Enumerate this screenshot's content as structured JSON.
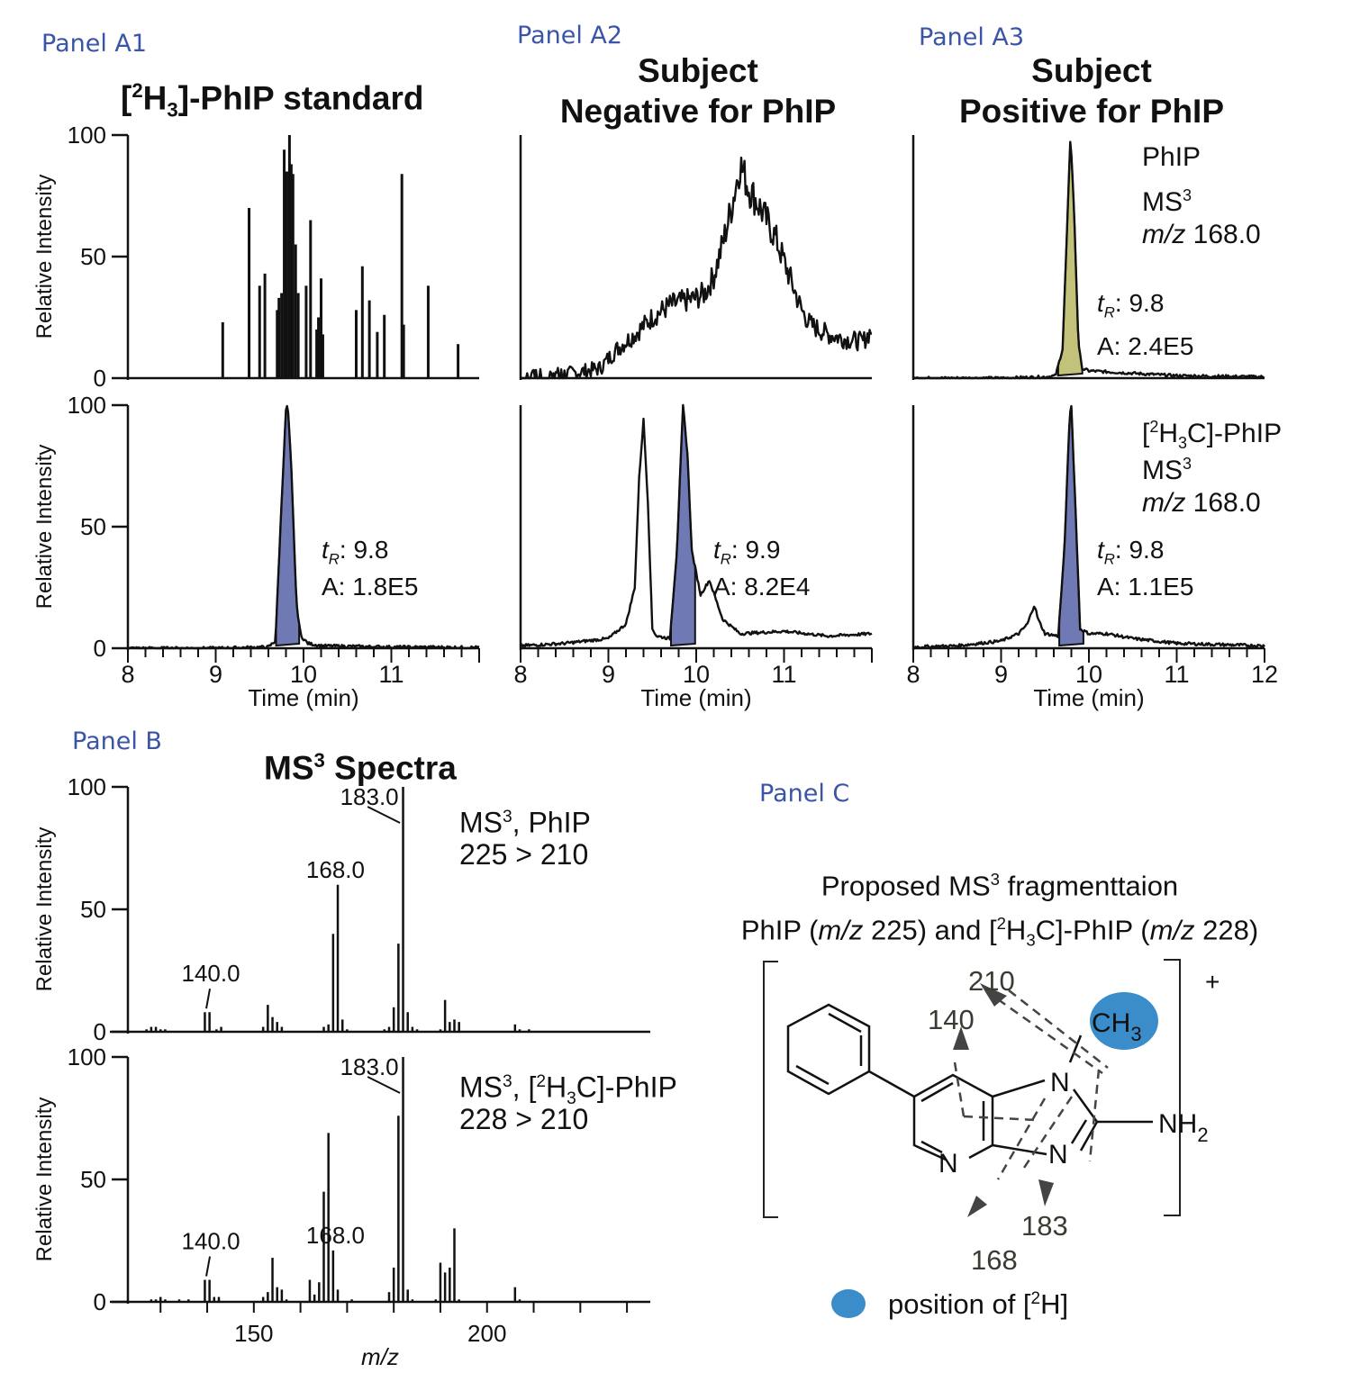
{
  "panels": {
    "a1": {
      "label": "Panel A1",
      "title": "[²H₃]-PhIP standard"
    },
    "a2": {
      "label": "Panel A2",
      "title_line1": "Subject",
      "title_line2": "Negative for PhIP"
    },
    "a3": {
      "label": "Panel A3",
      "title_line1": "Subject",
      "title_line2": "Positive for PhIP"
    },
    "b": {
      "label": "Panel B",
      "title": "MS³ Spectra"
    },
    "c": {
      "label": "Panel C"
    }
  },
  "colors": {
    "panel_label": "#3a55a8",
    "blue_fill": "#6f79b4",
    "olive_fill": "#c3c27a",
    "deuterium_dot": "#3a8dc9",
    "fragment_text": "#3b3b32"
  },
  "chart_data": [
    {
      "id": "a1_top",
      "type": "bar",
      "title": "[²H₃]-PhIP standard",
      "xlabel": "",
      "ylabel": "Relative Intensity",
      "xlim": [
        8,
        12
      ],
      "ylim": [
        0,
        100
      ],
      "yticks": [
        0,
        50,
        100
      ],
      "x": [
        9.08,
        9.38,
        9.5,
        9.56,
        9.7,
        9.72,
        9.75,
        9.78,
        9.81,
        9.84,
        9.86,
        9.88,
        9.91,
        9.94,
        10.03,
        10.08,
        10.15,
        10.17,
        10.2,
        10.22,
        10.6,
        10.67,
        10.75,
        10.84,
        10.92,
        11.12,
        11.14,
        11.42,
        11.76
      ],
      "values": [
        23,
        70,
        38,
        43,
        28,
        33,
        35,
        94,
        85,
        100,
        88,
        84,
        55,
        35,
        38,
        65,
        20,
        25,
        41,
        18,
        28,
        46,
        32,
        19,
        26,
        84,
        22,
        38,
        14
      ]
    },
    {
      "id": "a2_top",
      "type": "line",
      "xlabel": "",
      "ylabel": "",
      "xlim": [
        8,
        12
      ],
      "ylim": [
        0,
        100
      ],
      "x": [
        8.0,
        8.3,
        8.6,
        8.9,
        9.1,
        9.3,
        9.5,
        9.7,
        9.9,
        10.0,
        10.1,
        10.2,
        10.3,
        10.4,
        10.5,
        10.6,
        10.7,
        10.8,
        10.9,
        11.0,
        11.1,
        11.2,
        11.3,
        11.5,
        11.7,
        11.9,
        12.0
      ],
      "values": [
        0,
        1,
        2,
        4,
        12,
        18,
        25,
        30,
        32,
        33,
        35,
        42,
        55,
        70,
        88,
        78,
        72,
        65,
        58,
        48,
        38,
        28,
        22,
        18,
        16,
        15,
        20
      ],
      "noise": true
    },
    {
      "id": "a3_top",
      "type": "area",
      "ylabel": "",
      "xlim": [
        8,
        12
      ],
      "ylim": [
        0,
        100
      ],
      "x": [
        8.0,
        9.0,
        9.5,
        9.62,
        9.7,
        9.75,
        9.79,
        9.83,
        9.88,
        9.92,
        10.0,
        10.5,
        11.0,
        12.0
      ],
      "values": [
        0,
        0,
        0.5,
        1,
        12,
        60,
        100,
        70,
        15,
        4,
        3,
        2,
        1,
        0.5
      ],
      "annotation": {
        "compound": "PhIP",
        "mode": "MS³",
        "mz_label": "m/z",
        "mz_value": "168.0",
        "tr_label": "t",
        "tr_sub": "R",
        "tr_value": ": 9.8",
        "area": "A: 2.4E5"
      }
    },
    {
      "id": "a1_bottom",
      "type": "area",
      "xlabel": "Time (min)",
      "ylabel": "Relative Intensity",
      "xlim": [
        8,
        12
      ],
      "xticks": [
        8,
        9,
        10,
        11
      ],
      "ylim": [
        0,
        100
      ],
      "yticks": [
        0,
        50,
        100
      ],
      "x": [
        8.0,
        9.0,
        9.6,
        9.68,
        9.75,
        9.8,
        9.82,
        9.86,
        9.92,
        9.97,
        10.05,
        10.2,
        11.0,
        12.0
      ],
      "values": [
        0,
        0,
        0.5,
        3,
        60,
        98,
        100,
        75,
        18,
        5,
        2,
        1,
        0.5,
        0.3
      ],
      "annotation": {
        "tr_label": "t",
        "tr_sub": "R",
        "tr_value": ": 9.8",
        "area": "A: 1.8E5"
      }
    },
    {
      "id": "a2_bottom",
      "type": "area",
      "xlabel": "Time (min)",
      "ylabel": "",
      "xlim": [
        8,
        12
      ],
      "xticks": [
        8,
        9,
        10,
        11
      ],
      "ylim": [
        0,
        100
      ],
      "x": [
        8.0,
        8.5,
        9.0,
        9.2,
        9.3,
        9.35,
        9.4,
        9.45,
        9.5,
        9.55,
        9.7,
        9.78,
        9.85,
        9.9,
        9.95,
        10.05,
        10.15,
        10.3,
        10.5,
        11.0,
        11.5,
        12.0
      ],
      "values": [
        1,
        2,
        4,
        10,
        25,
        70,
        94,
        60,
        8,
        5,
        4,
        40,
        100,
        80,
        40,
        22,
        28,
        12,
        6,
        7,
        5,
        6
      ],
      "annotation": {
        "tr_label": "t",
        "tr_sub": "R",
        "tr_value": ": 9.9",
        "area": "A: 8.2E4"
      }
    },
    {
      "id": "a3_bottom",
      "type": "area",
      "xlabel": "Time (min)",
      "ylabel": "",
      "xlim": [
        8,
        12
      ],
      "xticks": [
        8,
        9,
        10,
        11,
        12
      ],
      "ylim": [
        0,
        100
      ],
      "x": [
        8.0,
        8.5,
        9.0,
        9.2,
        9.3,
        9.38,
        9.42,
        9.5,
        9.65,
        9.72,
        9.78,
        9.8,
        9.85,
        9.9,
        10.0,
        10.2,
        10.5,
        11.0,
        12.0
      ],
      "values": [
        0.5,
        1,
        3,
        6,
        10,
        18,
        12,
        6,
        5,
        40,
        95,
        100,
        55,
        8,
        6,
        6,
        4,
        2,
        1
      ],
      "annotation": {
        "compound": "[²H₃C]-PhIP",
        "mode": "MS³",
        "mz_label": "m/z",
        "mz_value": "168.0",
        "tr_label": "t",
        "tr_sub": "R",
        "tr_value": ": 9.8",
        "area": "A: 1.1E5"
      }
    },
    {
      "id": "b_top",
      "type": "bar",
      "title": "MS³ Spectra",
      "ylabel": "Relative Intensity",
      "xlim": [
        123,
        235
      ],
      "ylim": [
        0,
        100
      ],
      "yticks": [
        0,
        50,
        100
      ],
      "x": [
        127,
        128,
        129,
        130,
        131,
        139.5,
        140.5,
        142,
        143,
        152,
        153,
        154,
        155,
        156,
        165,
        166,
        167,
        168,
        169,
        170,
        178,
        179,
        180,
        181,
        182,
        183,
        184,
        185,
        190,
        191,
        192,
        193,
        194,
        195,
        206,
        207,
        209
      ],
      "values": [
        1,
        2,
        2,
        1,
        1,
        8,
        8,
        1,
        2,
        2,
        11,
        6,
        4,
        2,
        2,
        3,
        40,
        60,
        5,
        1,
        1,
        2,
        10,
        36,
        100,
        8,
        2,
        1,
        1,
        13,
        4,
        5,
        4,
        0,
        3,
        1,
        1
      ],
      "peak_labels": [
        "140.0",
        "168.0",
        "183.0"
      ],
      "annotation": {
        "line1_prefix": "MS³, PhIP",
        "line2": "225 > 210"
      }
    },
    {
      "id": "b_bottom",
      "type": "bar",
      "xlabel": "m/z",
      "ylabel": "Relative Intensity",
      "xlim": [
        123,
        235
      ],
      "xticks": [
        130,
        140,
        150,
        160,
        170,
        180,
        190,
        200,
        210,
        220,
        230
      ],
      "xticklabels": [
        "150",
        "200"
      ],
      "ylim": [
        0,
        100
      ],
      "yticks": [
        0,
        50,
        100
      ],
      "x": [
        128,
        129,
        130,
        131,
        134,
        136,
        139.5,
        140.5,
        141.5,
        142.5,
        152,
        153,
        154,
        155,
        156,
        157,
        162,
        163,
        164,
        165,
        166,
        167,
        168,
        171,
        179,
        180,
        181,
        182,
        183,
        184,
        189,
        190,
        191,
        192,
        193,
        194,
        206,
        207
      ],
      "values": [
        1,
        1,
        2,
        1,
        1,
        1,
        9,
        9,
        2,
        2,
        2,
        4,
        18,
        6,
        5,
        1,
        9,
        3,
        8,
        45,
        69,
        21,
        5,
        1,
        4,
        14,
        76,
        100,
        5,
        1,
        1,
        16,
        12,
        14,
        30,
        1,
        6,
        1
      ],
      "peak_labels": [
        "140.0",
        "168.0",
        "183.0"
      ],
      "annotation": {
        "line1": "MS³, [²H₃C]-PhIP",
        "line2": "228 > 210"
      }
    }
  ],
  "panel_c": {
    "title_line1": "Proposed MS³ fragmenttaion",
    "title_line2": "PhIP (m/z 225) and [²H₃C]-PhIP (m/z 228)",
    "fragments": [
      "210",
      "140",
      "183",
      "168"
    ],
    "atoms": {
      "methyl": "CH",
      "methyl_sub": "3",
      "n1": "N",
      "n2": "N",
      "n3": "N",
      "amine": "NH",
      "amine_sub": "2"
    },
    "charge": "+",
    "legend": "position of [²H]"
  }
}
